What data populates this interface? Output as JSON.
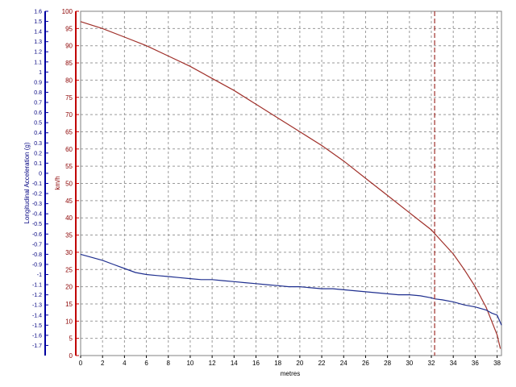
{
  "chart_data": {
    "type": "line",
    "xlabel": "metres",
    "xlim": [
      0,
      38.4
    ],
    "x_ticks": [
      0,
      2,
      4,
      6,
      8,
      10,
      12,
      14,
      16,
      18,
      20,
      22,
      24,
      26,
      28,
      30,
      32,
      34,
      36,
      38
    ],
    "marker_x": 32.3,
    "grid": true,
    "colors": {
      "accel": "#1f2f8f",
      "speed": "#a0302a",
      "marker": "#a0302a",
      "grid": "#9a9a9a",
      "left_axis": "#0000a0",
      "speed_axis": "#c00000"
    },
    "accel_axis": {
      "label": "Longitudinal Acceleration (g)",
      "lim": [
        -1.8,
        1.6
      ],
      "ticks": [
        "1.6",
        "1.5",
        "1.4",
        "1.3",
        "1.2",
        "1.1",
        "1",
        "0.9",
        "0.8",
        "0.7",
        "0.6",
        "0.5",
        "0.4",
        "0.3",
        "0.2",
        "0.1",
        "0",
        "-0.1",
        "-0.2",
        "-0.3",
        "-0.4",
        "-0.5",
        "-0.6",
        "-0.7",
        "-0.8",
        "-0.9",
        "-1",
        "-1.1",
        "-1.2",
        "-1.3",
        "-1.4",
        "-1.5",
        "-1.6",
        "-1.7"
      ]
    },
    "speed_axis": {
      "label": "km/h",
      "lim": [
        0,
        100
      ],
      "ticks": [
        "100",
        "95",
        "90",
        "85",
        "80",
        "75",
        "70",
        "65",
        "60",
        "55",
        "50",
        "45",
        "40",
        "35",
        "30",
        "25",
        "20",
        "15",
        "10",
        "5",
        "0"
      ]
    },
    "series": [
      {
        "axis": "speed",
        "x": [
          0,
          2,
          4,
          6,
          8,
          10,
          12,
          14,
          16,
          18,
          20,
          22,
          24,
          26,
          28,
          30,
          31,
          32,
          33,
          34,
          35,
          36,
          37,
          37.5,
          38,
          38.3
        ],
        "y": [
          97,
          95,
          92.5,
          90,
          87,
          84,
          80.5,
          77,
          73,
          69,
          65,
          61,
          56.5,
          51.5,
          46.5,
          41.5,
          39,
          36.5,
          33,
          29.5,
          25,
          20,
          14,
          10,
          6,
          2
        ]
      },
      {
        "axis": "accel",
        "x": [
          0,
          1,
          2,
          3,
          4,
          5,
          6,
          7,
          8,
          9,
          10,
          11,
          12,
          13,
          14,
          15,
          16,
          17,
          18,
          19,
          20,
          21,
          22,
          23,
          24,
          25,
          26,
          27,
          28,
          29,
          30,
          31,
          32,
          32.3,
          33,
          34,
          35,
          36,
          37,
          37.5,
          38,
          38.2,
          38.4
        ],
        "y": [
          -0.8,
          -0.83,
          -0.86,
          -0.9,
          -0.94,
          -0.98,
          -1.0,
          -1.01,
          -1.02,
          -1.03,
          -1.04,
          -1.05,
          -1.05,
          -1.06,
          -1.07,
          -1.08,
          -1.09,
          -1.1,
          -1.11,
          -1.12,
          -1.12,
          -1.13,
          -1.14,
          -1.14,
          -1.15,
          -1.16,
          -1.17,
          -1.18,
          -1.19,
          -1.2,
          -1.2,
          -1.21,
          -1.23,
          -1.24,
          -1.25,
          -1.27,
          -1.3,
          -1.32,
          -1.35,
          -1.38,
          -1.4,
          -1.45,
          -1.5
        ]
      }
    ]
  }
}
